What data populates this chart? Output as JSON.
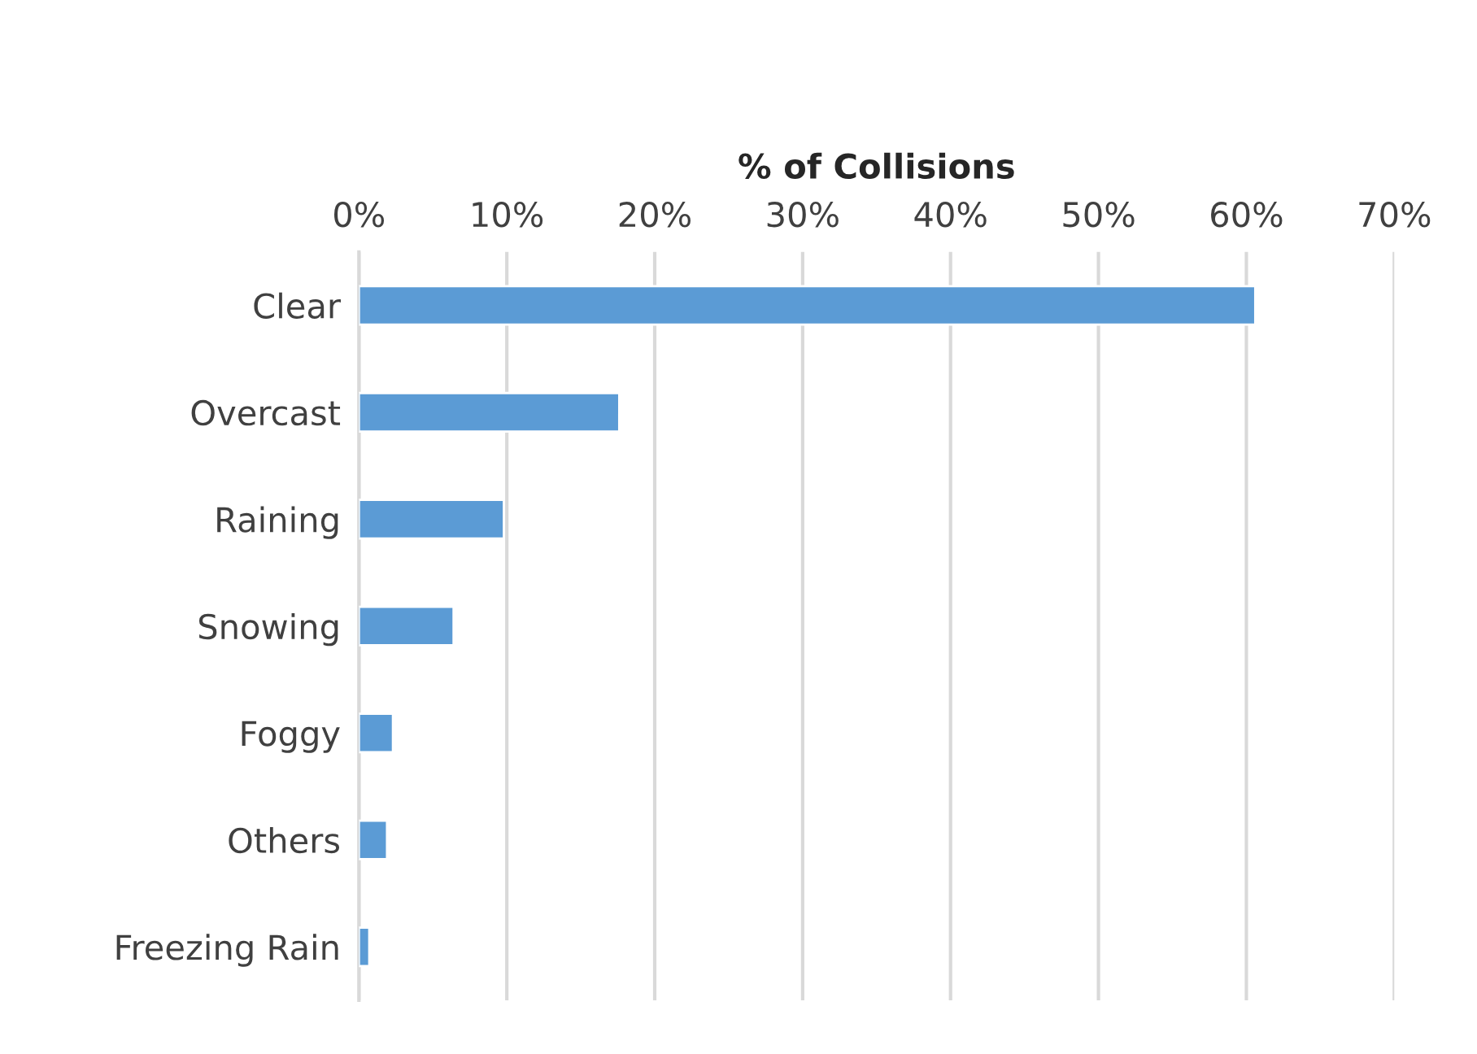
{
  "chart_data": {
    "type": "bar",
    "orientation": "horizontal",
    "xlabel": "% of Collisions",
    "categories": [
      "Clear",
      "Overcast",
      "Raining",
      "Snowing",
      "Foggy",
      "Others",
      "Freezing Rain"
    ],
    "values": [
      60.6,
      17.6,
      9.8,
      6.4,
      2.3,
      1.9,
      0.7
    ],
    "color": "#5b9bd5",
    "xlim": [
      0,
      70
    ],
    "xticks": [
      {
        "value": 0,
        "label": "0%"
      },
      {
        "value": 10,
        "label": "10%"
      },
      {
        "value": 20,
        "label": "20%"
      },
      {
        "value": 30,
        "label": "30%"
      },
      {
        "value": 40,
        "label": "40%"
      },
      {
        "value": 50,
        "label": "50%"
      },
      {
        "value": 60,
        "label": "60%"
      },
      {
        "value": 70,
        "label": "70%"
      }
    ],
    "grid": "x",
    "legend": false
  }
}
